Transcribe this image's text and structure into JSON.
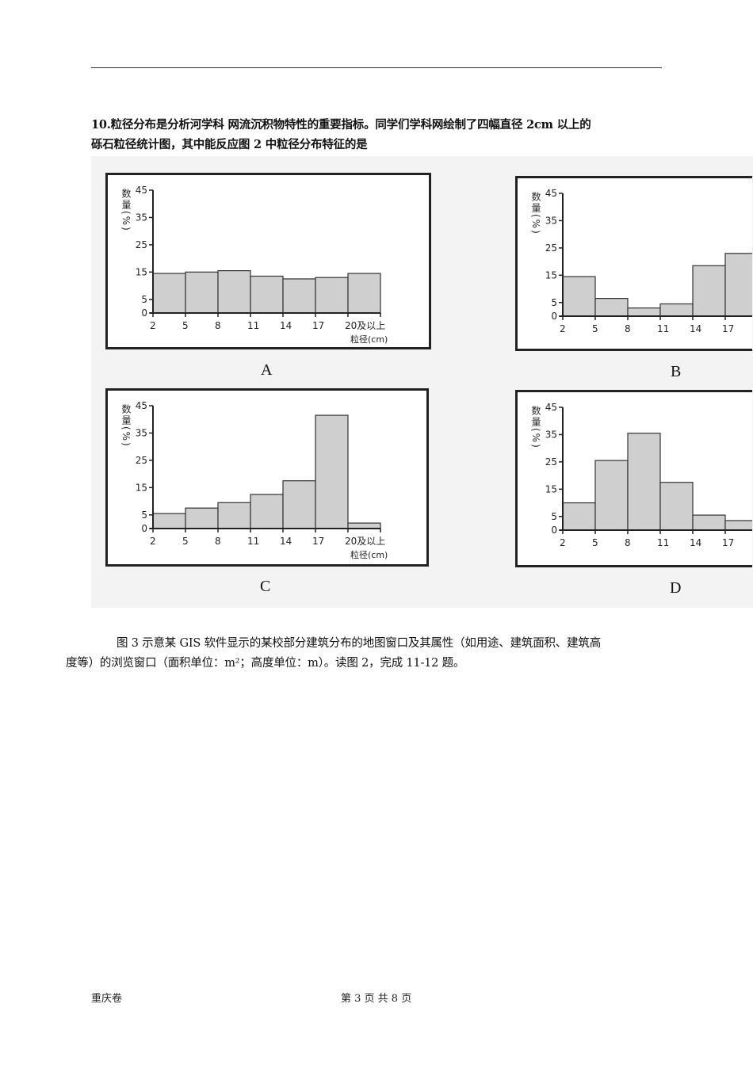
{
  "question10": {
    "line1": "10.粒径分布是分析河学科 网流沉积物特性的重要指标。同学们学科网绘制了四幅直径 2cm 以上的",
    "line2": "砾石粒径统计图，其中能反应图 2 中粒径分布特征的是"
  },
  "chart_data": [
    {
      "type": "bar",
      "label": "A",
      "ylabel": "数量(%)",
      "xlabel": "粒径(cm)",
      "yticks": [
        0,
        5,
        15,
        25,
        35,
        45
      ],
      "ylim": [
        0,
        45
      ],
      "xticks": [
        "2",
        "5",
        "8",
        "11",
        "14",
        "17",
        "20及以上"
      ],
      "categories": [
        "2-5",
        "5-8",
        "8-11",
        "11-14",
        "14-17",
        "17-20",
        "20及以上"
      ],
      "values": [
        14.5,
        15,
        15.5,
        13.5,
        12.5,
        13,
        14.5
      ]
    },
    {
      "type": "bar",
      "label": "B",
      "ylabel": "数量(%)",
      "yticks": [
        0,
        5,
        15,
        25,
        35,
        45
      ],
      "ylim": [
        0,
        45
      ],
      "xticks": [
        "2",
        "5",
        "8",
        "11",
        "14",
        "17"
      ],
      "categories": [
        "2-5",
        "5-8",
        "8-11",
        "11-14",
        "14-17",
        "17-20"
      ],
      "values": [
        14.5,
        6.5,
        3,
        4.5,
        18.5,
        23
      ]
    },
    {
      "type": "bar",
      "label": "C",
      "ylabel": "数量(%)",
      "xlabel": "粒径(cm)",
      "yticks": [
        0,
        5,
        15,
        25,
        35,
        45
      ],
      "ylim": [
        0,
        45
      ],
      "xticks": [
        "2",
        "5",
        "8",
        "11",
        "14",
        "17",
        "20及以上"
      ],
      "categories": [
        "2-5",
        "5-8",
        "8-11",
        "11-14",
        "14-17",
        "17-20",
        "20及以上"
      ],
      "values": [
        5.5,
        7.5,
        9.5,
        12.5,
        17.5,
        41.5,
        2
      ]
    },
    {
      "type": "bar",
      "label": "D",
      "ylabel": "数量(%)",
      "yticks": [
        0,
        5,
        15,
        25,
        35,
        45
      ],
      "ylim": [
        0,
        45
      ],
      "xticks": [
        "2",
        "5",
        "8",
        "11",
        "14",
        "17"
      ],
      "categories": [
        "2-5",
        "5-8",
        "8-11",
        "11-14",
        "14-17",
        "17-20"
      ],
      "values": [
        10,
        25.5,
        35.5,
        17.5,
        5.5,
        3.5
      ]
    }
  ],
  "intro": {
    "line1": "图 3 示意某 GIS 软件显示的某校部分建筑分布的地图窗口及其属性（如用途、建筑面积、建筑高",
    "line2": "度等）的浏览窗口（面积单位：m²；高度单位：m）。读图 2，完成 11-12 题。"
  },
  "footer": {
    "left": "重庆卷",
    "center": "第 3 页 共 8 页"
  },
  "colors": {
    "bar_fill": "#cfcfcf",
    "frame": "#222222",
    "figure_bg": "#f3f3f3"
  }
}
